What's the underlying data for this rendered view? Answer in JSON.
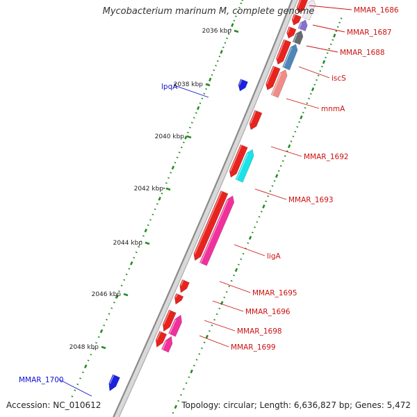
{
  "title": "Mycobacterium marinum M, complete genome",
  "footer": {
    "accession": "Accession: NC_010612",
    "summary": "Topology: circular; Length: 6,636,827 bp; Genes: 5,472"
  },
  "colors": {
    "backbone": "#8a8a8a",
    "tick": "#228b22",
    "forward_gene": "#e8231e",
    "reverse_gene_label": "#cc1111",
    "outer_gene_label": "#1111cc"
  },
  "scale_labels": [
    {
      "text": "2036 kbp",
      "kbp": 2036
    },
    {
      "text": "2038 kbp",
      "kbp": 2038
    },
    {
      "text": "2040 kbp",
      "kbp": 2040
    },
    {
      "text": "2042 kbp",
      "kbp": 2042
    },
    {
      "text": "2044 kbp",
      "kbp": 2044
    },
    {
      "text": "2046 kbp",
      "kbp": 2046
    },
    {
      "text": "2048 kbp",
      "kbp": 2048
    }
  ],
  "genes": [
    {
      "label": "MMAR_1686",
      "fill": "#e9e9ee",
      "lane": "right"
    },
    {
      "label": "MMAR_1687",
      "fill": "#8a6fd0",
      "lane": "right"
    },
    {
      "label": "MMAR_1688",
      "fill": "#666a70",
      "lane": "right"
    },
    {
      "label": "iscS",
      "fill": "#4f86b8",
      "lane": "right"
    },
    {
      "label": "mnmA",
      "fill": "#f08c86",
      "lane": "right"
    },
    {
      "label": "MMAR_1692",
      "fill": "#e8231e",
      "lane": "left"
    },
    {
      "label": "MMAR_1693",
      "fill": "#19e3e8",
      "lane": "right"
    },
    {
      "label": "ligA",
      "fill": "#f0319c",
      "lane": "right"
    },
    {
      "label": "MMAR_1695",
      "fill": "#e8231e",
      "lane": "left"
    },
    {
      "label": "MMAR_1696",
      "fill": "#e8231e",
      "lane": "left"
    },
    {
      "label": "MMAR_1698",
      "fill": "#f0319c",
      "lane": "right"
    },
    {
      "label": "MMAR_1699",
      "fill": "#f0319c",
      "lane": "right"
    },
    {
      "label": "lpqA",
      "fill": "#1a22e0",
      "lane": "outer"
    },
    {
      "label": "MMAR_1700",
      "fill": "#1a22e0",
      "lane": "outer"
    }
  ]
}
